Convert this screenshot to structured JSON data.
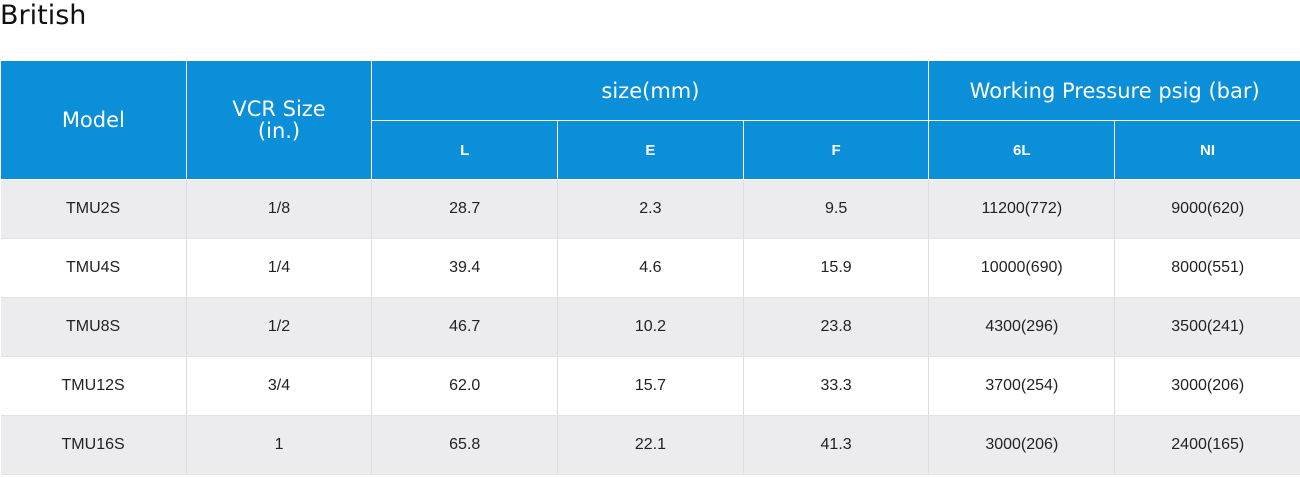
{
  "title": "British",
  "headers": {
    "model": "Model",
    "vcr_line1": "VCR Size",
    "vcr_line2": "(in.)",
    "size_group": "size(mm)",
    "pressure_group": "Working Pressure psig (bar)",
    "sub": [
      "L",
      "E",
      "F",
      "6L",
      "NI"
    ]
  },
  "rows": [
    [
      "TMU2S",
      "1/8",
      "28.7",
      "2.3",
      "9.5",
      "11200(772)",
      "9000(620)"
    ],
    [
      "TMU4S",
      "1/4",
      "39.4",
      "4.6",
      "15.9",
      "10000(690)",
      "8000(551)"
    ],
    [
      "TMU8S",
      "1/2",
      "46.7",
      "10.2",
      "23.8",
      "4300(296)",
      "3500(241)"
    ],
    [
      "TMU12S",
      "3/4",
      "62.0",
      "15.7",
      "33.3",
      "3700(254)",
      "3000(206)"
    ],
    [
      "TMU16S",
      "1",
      "65.8",
      "22.1",
      "41.3",
      "3000(206)",
      "2400(165)"
    ]
  ],
  "colors": {
    "header_bg": "#0a8fd8",
    "row_alt_bg": "#ececee"
  }
}
